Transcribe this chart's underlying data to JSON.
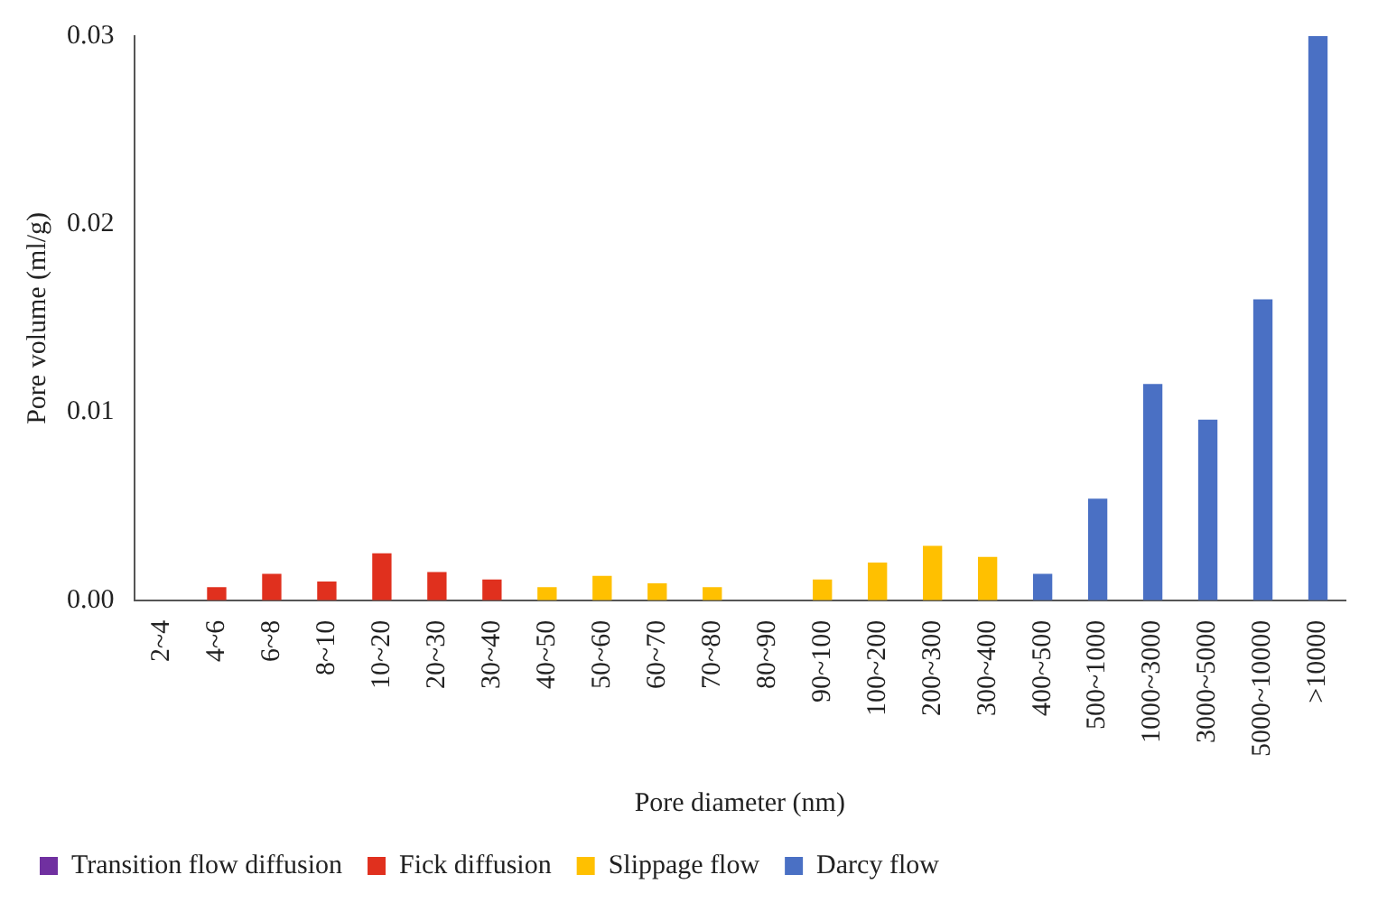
{
  "chart_data": {
    "type": "bar",
    "xlabel": "Pore diameter (nm)",
    "ylabel": "Pore volume (ml/g)",
    "categories": [
      "2~4",
      "4~6",
      "6~8",
      "8~10",
      "10~20",
      "20~30",
      "30~40",
      "40~50",
      "50~60",
      "60~70",
      "70~80",
      "80~90",
      "90~100",
      "100~200",
      "200~300",
      "300~400",
      "400~500",
      "500~1000",
      "1000~3000",
      "3000~5000",
      "5000~10000",
      ">10000"
    ],
    "series": [
      {
        "name": "Transition flow diffusion",
        "color": "#7030a0",
        "values": [
          0,
          null,
          null,
          null,
          null,
          null,
          null,
          null,
          null,
          null,
          null,
          null,
          null,
          null,
          null,
          null,
          null,
          null,
          null,
          null,
          null,
          null
        ]
      },
      {
        "name": "Fick diffusion",
        "color": "#e0301e",
        "values": [
          null,
          0.0007,
          0.0014,
          0.001,
          0.0025,
          0.0015,
          0.0011,
          null,
          null,
          null,
          null,
          null,
          null,
          null,
          null,
          null,
          null,
          null,
          null,
          null,
          null,
          null
        ]
      },
      {
        "name": "Slippage flow",
        "color": "#ffc000",
        "values": [
          null,
          null,
          null,
          null,
          null,
          null,
          null,
          0.0007,
          0.0013,
          0.0009,
          0.0007,
          0,
          0.0011,
          0.002,
          0.0029,
          0.0023,
          null,
          null,
          null,
          null,
          null,
          null
        ]
      },
      {
        "name": "Darcy flow",
        "color": "#4a70c4",
        "values": [
          null,
          null,
          null,
          null,
          null,
          null,
          null,
          null,
          null,
          null,
          null,
          null,
          null,
          null,
          null,
          null,
          0.0014,
          0.0054,
          0.0115,
          0.0096,
          0.016,
          0.03
        ]
      }
    ],
    "ylim": [
      0,
      0.03
    ],
    "yticks": [
      {
        "value": 0,
        "label": "0.00"
      },
      {
        "value": 0.01,
        "label": "0.01"
      },
      {
        "value": 0.02,
        "label": "0.02"
      },
      {
        "value": 0.03,
        "label": "0.03"
      }
    ],
    "legend": "bottom"
  }
}
